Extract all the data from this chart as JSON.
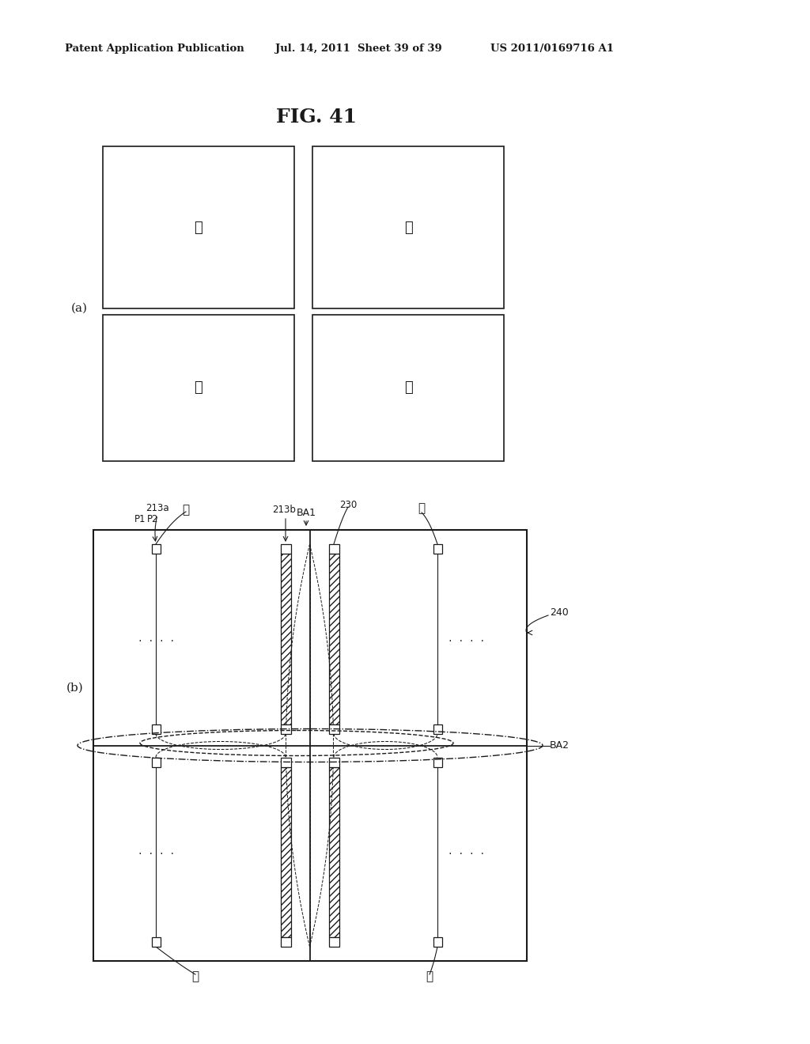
{
  "fig_title": "FIG. 41",
  "header_left": "Patent Application Publication",
  "header_mid": "Jul. 14, 2011  Sheet 39 of 39",
  "header_right": "US 2011/0169716 A1",
  "bg_color": "#ffffff",
  "line_color": "#1a1a1a",
  "label_a": "(a)",
  "label_b": "(b)",
  "cn1": "①",
  "cn2": "②",
  "cn3": "③",
  "cn4": "④"
}
